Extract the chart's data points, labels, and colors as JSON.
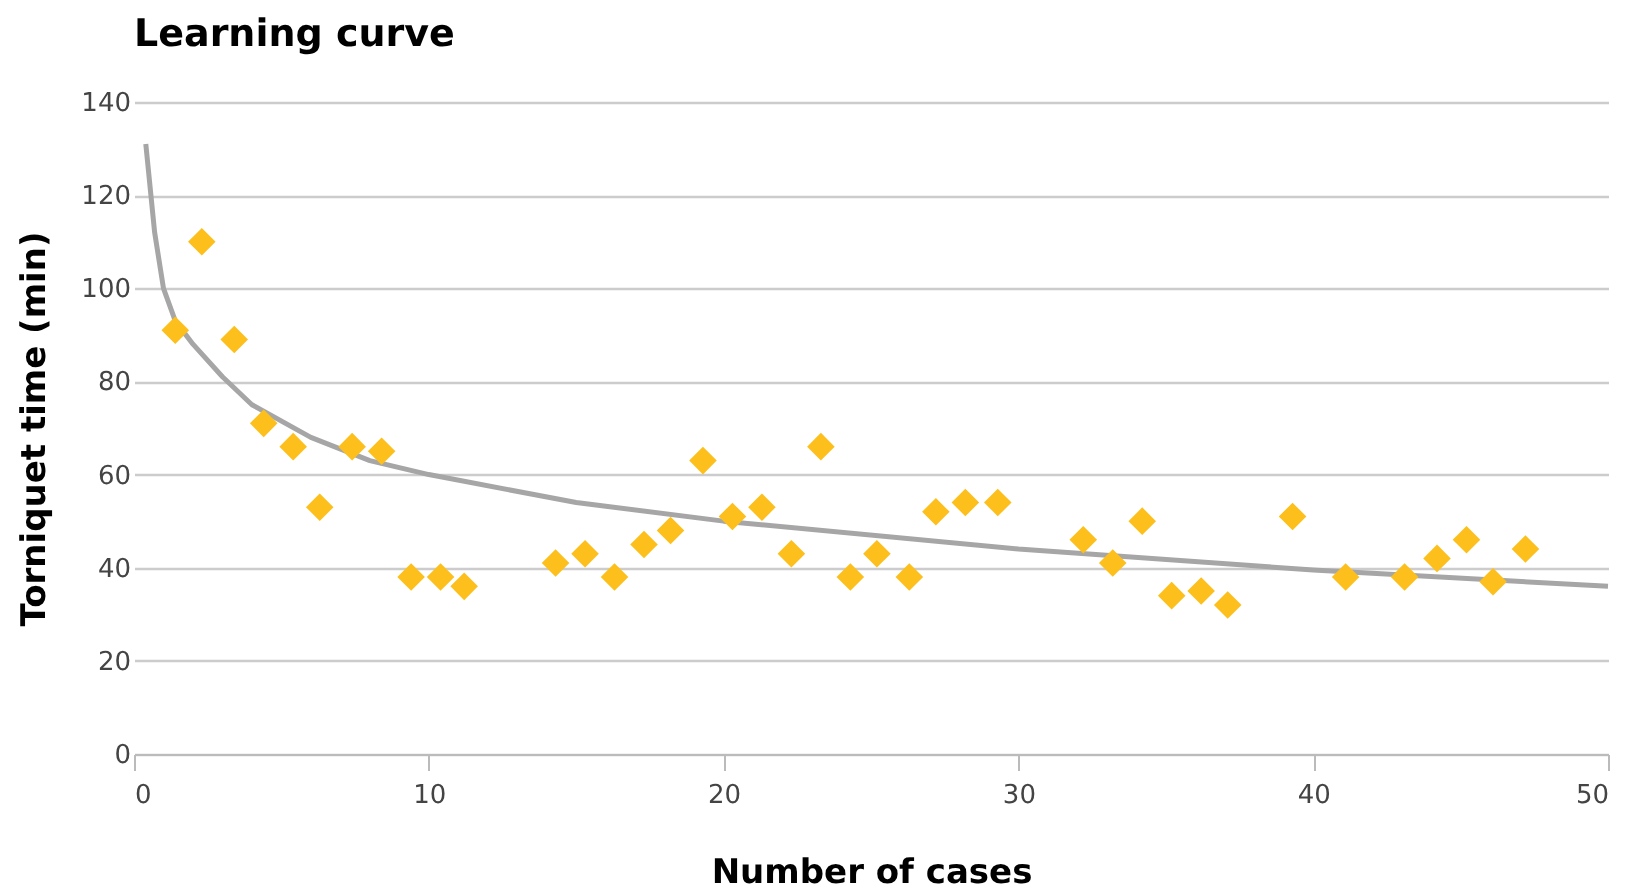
{
  "chart_data": {
    "type": "scatter",
    "title": "Learning curve",
    "xlabel": "Number of cases",
    "ylabel": "Torniquet time (min)",
    "xlim": [
      0,
      50
    ],
    "xticks": [
      0,
      10,
      20,
      30,
      40,
      50
    ],
    "ylim": [
      0,
      140
    ],
    "yticks": [
      0,
      20,
      40,
      60,
      80,
      100,
      120,
      140
    ],
    "grid": "y",
    "marker": "diamond",
    "series": [
      {
        "type": "scatter",
        "color": "#fdbf1b",
        "x": [
          1.4,
          2.3,
          3.4,
          4.4,
          5.4,
          6.3,
          7.4,
          8.4,
          9.4,
          10.4,
          11.2,
          14.3,
          15.3,
          16.3,
          17.3,
          18.2,
          19.3,
          20.3,
          21.3,
          22.3,
          23.3,
          24.3,
          25.2,
          26.3,
          27.2,
          28.2,
          29.3,
          32.2,
          33.2,
          34.2,
          35.2,
          36.2,
          37.1,
          39.3,
          41.1,
          43.1,
          44.2,
          45.2,
          46.1,
          47.2
        ],
        "values": [
          91,
          110,
          89,
          71,
          66,
          53,
          66,
          65,
          38,
          38,
          36,
          41,
          43,
          38,
          45,
          48,
          63,
          51,
          53,
          43,
          66,
          38,
          43,
          38,
          52,
          54,
          54,
          46,
          41,
          50,
          34,
          35,
          32,
          51,
          38,
          38,
          42,
          46,
          37,
          44
        ]
      },
      {
        "type": "line",
        "color": "#a6a6a6",
        "marker": "none",
        "x": [
          0.4,
          0.7,
          1,
          1.4,
          2,
          3,
          4,
          6,
          8,
          10,
          15,
          20,
          30,
          40,
          50
        ],
        "values": [
          131,
          112,
          100,
          93,
          88,
          81,
          75,
          68,
          63,
          60,
          54,
          50,
          44,
          39.5,
          36
        ]
      }
    ]
  }
}
